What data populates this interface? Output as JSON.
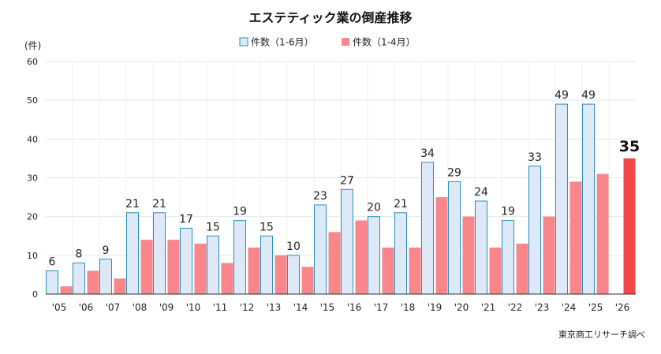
{
  "chart_data": {
    "type": "bar",
    "title": "エステティック業の倒産推移",
    "ylabel": "(件)",
    "ylim": [
      0,
      60
    ],
    "yticks": [
      0,
      10,
      20,
      30,
      40,
      50,
      60
    ],
    "grid": true,
    "legend_position": "top-center",
    "categories": [
      "'05",
      "'06",
      "'07",
      "'08",
      "'09",
      "'10",
      "'11",
      "'12",
      "'13",
      "'14",
      "'15",
      "'16",
      "'17",
      "'18",
      "'19",
      "'20",
      "'21",
      "'22",
      "'23",
      "'24",
      "'25",
      "'26"
    ],
    "series": [
      {
        "name": "件数（1-6月）",
        "values": [
          6,
          8,
          9,
          21,
          21,
          17,
          15,
          19,
          15,
          10,
          23,
          27,
          20,
          21,
          34,
          29,
          24,
          19,
          33,
          49,
          49,
          null
        ],
        "labels": [
          "6",
          "8",
          "9",
          "21",
          "21",
          "17",
          "15",
          "19",
          "15",
          "10",
          "23",
          "27",
          "20",
          "21",
          "34",
          "29",
          "24",
          "19",
          "33",
          "49",
          "49",
          ""
        ],
        "fill": "#dde9f7",
        "stroke": "#2b8fb8"
      },
      {
        "name": "件数（1-4月）",
        "values": [
          2,
          6,
          4,
          14,
          14,
          13,
          8,
          12,
          10,
          7,
          16,
          19,
          12,
          12,
          25,
          20,
          12,
          13,
          20,
          29,
          31,
          35
        ],
        "labels": [
          "",
          "",
          "",
          "",
          "",
          "",
          "",
          "",
          "",
          "",
          "",
          "",
          "",
          "",
          "",
          "",
          "",
          "",
          "",
          "",
          "",
          "35"
        ],
        "fill": "#f8868a",
        "highlight_fill": "#f24649"
      }
    ],
    "source": "東京商工リサーチ調べ"
  }
}
